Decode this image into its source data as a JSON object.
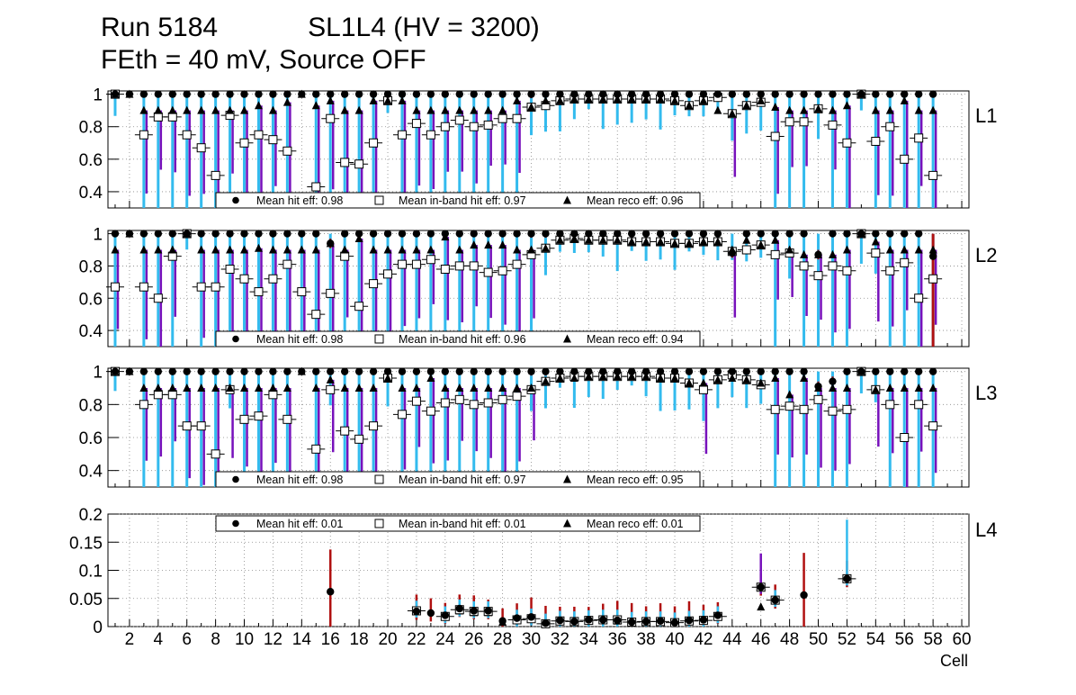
{
  "header": {
    "title_line1": "Run 5184            SL1L4 (HV = 3200)",
    "title_line2": "FEth = 40 mV, Source OFF"
  },
  "chart_data": [
    {
      "type": "scatter",
      "panel": "L1",
      "ylim": [
        0.3,
        1.02
      ],
      "yticks": [
        "0.4",
        "0.6",
        "0.8",
        "1"
      ],
      "legend": [
        "Mean hit  eff: 0.98",
        "Mean in-band hit eff: 0.97",
        "Mean reco eff: 0.96"
      ],
      "legend_position": "bottom",
      "inband": [
        [
          1,
          1.0
        ],
        [
          3,
          0.75
        ],
        [
          4,
          0.86
        ],
        [
          5,
          0.86
        ],
        [
          6,
          0.75
        ],
        [
          7,
          0.67
        ],
        [
          8,
          0.5
        ],
        [
          9,
          0.87
        ],
        [
          10,
          0.7
        ],
        [
          11,
          0.75
        ],
        [
          12,
          0.72
        ],
        [
          13,
          0.65
        ],
        [
          15,
          0.43
        ],
        [
          16,
          0.85
        ],
        [
          17,
          0.58
        ],
        [
          18,
          0.57
        ],
        [
          19,
          0.7
        ],
        [
          20,
          0.96
        ],
        [
          21,
          0.75
        ],
        [
          22,
          0.82
        ],
        [
          23,
          0.75
        ],
        [
          24,
          0.8
        ],
        [
          25,
          0.84
        ],
        [
          26,
          0.8
        ],
        [
          27,
          0.81
        ],
        [
          28,
          0.85
        ],
        [
          29,
          0.85
        ],
        [
          30,
          0.92
        ],
        [
          31,
          0.93
        ],
        [
          32,
          0.96
        ],
        [
          33,
          0.97
        ],
        [
          34,
          0.97
        ],
        [
          35,
          0.97
        ],
        [
          36,
          0.97
        ],
        [
          37,
          0.97
        ],
        [
          38,
          0.97
        ],
        [
          39,
          0.97
        ],
        [
          40,
          0.96
        ],
        [
          41,
          0.93
        ],
        [
          42,
          0.96
        ],
        [
          43,
          0.98
        ],
        [
          44,
          0.88
        ],
        [
          45,
          0.93
        ],
        [
          46,
          0.95
        ],
        [
          47,
          0.74
        ],
        [
          48,
          0.83
        ],
        [
          49,
          0.83
        ],
        [
          50,
          0.91
        ],
        [
          51,
          0.81
        ],
        [
          52,
          0.7
        ],
        [
          53,
          1.0
        ],
        [
          54,
          0.71
        ],
        [
          55,
          0.8
        ],
        [
          56,
          0.6
        ],
        [
          57,
          0.73
        ],
        [
          58,
          0.5
        ]
      ],
      "reco": [
        [
          11,
          0.93
        ],
        [
          13,
          0.95
        ],
        [
          15,
          0.93
        ],
        [
          16,
          0.96
        ],
        [
          19,
          0.96
        ],
        [
          21,
          0.96
        ],
        [
          29,
          0.96
        ],
        [
          31,
          0.96
        ],
        [
          43,
          0.9
        ],
        [
          44,
          0.88
        ],
        [
          46,
          0.96
        ],
        [
          47,
          0.92
        ],
        [
          52,
          0.93
        ],
        [
          53,
          1.0
        ],
        [
          54,
          0.9
        ],
        [
          56,
          0.96
        ]
      ],
      "hit_low": []
    },
    {
      "type": "scatter",
      "panel": "L2",
      "ylim": [
        0.3,
        1.02
      ],
      "yticks": [
        "0.4",
        "0.6",
        "0.8",
        "1"
      ],
      "legend": [
        "Mean hit  eff: 0.98",
        "Mean in-band hit eff: 0.96",
        "Mean reco eff: 0.94"
      ],
      "legend_position": "bottom",
      "inband": [
        [
          1,
          0.67
        ],
        [
          3,
          0.67
        ],
        [
          4,
          0.6
        ],
        [
          5,
          0.86
        ],
        [
          6,
          1.0
        ],
        [
          7,
          0.67
        ],
        [
          8,
          0.67
        ],
        [
          9,
          0.78
        ],
        [
          10,
          0.72
        ],
        [
          11,
          0.64
        ],
        [
          12,
          0.72
        ],
        [
          13,
          0.81
        ],
        [
          14,
          0.64
        ],
        [
          15,
          0.5
        ],
        [
          16,
          0.63
        ],
        [
          17,
          0.86
        ],
        [
          18,
          0.55
        ],
        [
          19,
          0.69
        ],
        [
          20,
          0.75
        ],
        [
          21,
          0.81
        ],
        [
          22,
          0.81
        ],
        [
          23,
          0.84
        ],
        [
          24,
          0.78
        ],
        [
          25,
          0.8
        ],
        [
          26,
          0.8
        ],
        [
          27,
          0.76
        ],
        [
          28,
          0.77
        ],
        [
          29,
          0.81
        ],
        [
          30,
          0.87
        ],
        [
          31,
          0.91
        ],
        [
          32,
          0.96
        ],
        [
          33,
          0.97
        ],
        [
          34,
          0.96
        ],
        [
          35,
          0.96
        ],
        [
          36,
          0.96
        ],
        [
          37,
          0.95
        ],
        [
          38,
          0.95
        ],
        [
          39,
          0.95
        ],
        [
          40,
          0.94
        ],
        [
          41,
          0.94
        ],
        [
          42,
          0.95
        ],
        [
          43,
          0.95
        ],
        [
          44,
          0.89
        ],
        [
          45,
          0.9
        ],
        [
          46,
          0.93
        ],
        [
          47,
          0.87
        ],
        [
          48,
          0.88
        ],
        [
          49,
          0.8
        ],
        [
          50,
          0.74
        ],
        [
          51,
          0.8
        ],
        [
          52,
          0.77
        ],
        [
          53,
          1.0
        ],
        [
          54,
          0.88
        ],
        [
          55,
          0.77
        ],
        [
          56,
          0.82
        ],
        [
          57,
          0.6
        ],
        [
          58,
          0.72
        ]
      ],
      "reco": [
        [
          11,
          0.91
        ],
        [
          16,
          0.94
        ],
        [
          18,
          0.97
        ],
        [
          24,
          0.98
        ],
        [
          26,
          0.93
        ],
        [
          27,
          0.93
        ],
        [
          28,
          0.93
        ],
        [
          44,
          0.9
        ],
        [
          45,
          0.96
        ],
        [
          47,
          0.96
        ],
        [
          49,
          0.87
        ],
        [
          50,
          0.87
        ],
        [
          51,
          0.87
        ],
        [
          53,
          1.0
        ],
        [
          54,
          0.95
        ]
      ],
      "hit_low": [
        [
          16,
          0.94
        ],
        [
          44,
          0.88
        ],
        [
          50,
          0.87
        ],
        [
          58,
          0.86
        ]
      ]
    },
    {
      "type": "scatter",
      "panel": "L3",
      "ylim": [
        0.3,
        1.02
      ],
      "yticks": [
        "0.4",
        "0.6",
        "0.8",
        "1"
      ],
      "legend": [
        "Mean hit  eff: 0.98",
        "Mean in-band hit eff: 0.97",
        "Mean reco eff: 0.95"
      ],
      "legend_position": "bottom",
      "inband": [
        [
          1,
          1.0
        ],
        [
          3,
          0.8
        ],
        [
          4,
          0.86
        ],
        [
          5,
          0.86
        ],
        [
          6,
          0.67
        ],
        [
          7,
          0.67
        ],
        [
          8,
          0.5
        ],
        [
          9,
          0.89
        ],
        [
          10,
          0.71
        ],
        [
          11,
          0.73
        ],
        [
          12,
          0.86
        ],
        [
          13,
          0.71
        ],
        [
          15,
          0.53
        ],
        [
          16,
          0.89
        ],
        [
          17,
          0.64
        ],
        [
          18,
          0.59
        ],
        [
          19,
          0.67
        ],
        [
          20,
          0.96
        ],
        [
          21,
          0.74
        ],
        [
          22,
          0.82
        ],
        [
          23,
          0.76
        ],
        [
          24,
          0.81
        ],
        [
          25,
          0.83
        ],
        [
          26,
          0.8
        ],
        [
          27,
          0.81
        ],
        [
          28,
          0.83
        ],
        [
          29,
          0.85
        ],
        [
          30,
          0.89
        ],
        [
          31,
          0.94
        ],
        [
          32,
          0.96
        ],
        [
          33,
          0.97
        ],
        [
          34,
          0.97
        ],
        [
          35,
          0.97
        ],
        [
          36,
          0.97
        ],
        [
          37,
          0.97
        ],
        [
          38,
          0.97
        ],
        [
          39,
          0.96
        ],
        [
          40,
          0.96
        ],
        [
          41,
          0.93
        ],
        [
          42,
          0.89
        ],
        [
          43,
          0.95
        ],
        [
          44,
          0.98
        ],
        [
          45,
          0.95
        ],
        [
          46,
          0.92
        ],
        [
          47,
          0.77
        ],
        [
          48,
          0.79
        ],
        [
          49,
          0.77
        ],
        [
          50,
          0.83
        ],
        [
          51,
          0.76
        ],
        [
          52,
          0.77
        ],
        [
          53,
          1.0
        ],
        [
          54,
          0.89
        ],
        [
          55,
          0.8
        ],
        [
          56,
          0.6
        ],
        [
          57,
          0.8
        ],
        [
          58,
          0.67
        ]
      ],
      "reco": [
        [
          10,
          0.9
        ],
        [
          16,
          0.95
        ],
        [
          23,
          0.96
        ],
        [
          33,
          0.96
        ],
        [
          42,
          0.93
        ],
        [
          44,
          0.96
        ],
        [
          46,
          0.93
        ],
        [
          47,
          0.96
        ],
        [
          48,
          0.86
        ],
        [
          49,
          0.96
        ],
        [
          53,
          1.0
        ],
        [
          54,
          0.89
        ],
        [
          56,
          0.9
        ],
        [
          57,
          0.9
        ]
      ],
      "hit_low": [
        [
          50,
          0.91
        ],
        [
          51,
          0.94
        ]
      ]
    },
    {
      "type": "scatter",
      "panel": "L4",
      "ylim": [
        0,
        0.2
      ],
      "yticks": [
        "0",
        "0.05",
        "0.1",
        "0.15",
        "0.2"
      ],
      "xlim": [
        0.5,
        60.5
      ],
      "xticks": [
        "2",
        "4",
        "6",
        "8",
        "10",
        "12",
        "14",
        "16",
        "18",
        "20",
        "22",
        "24",
        "26",
        "28",
        "30",
        "32",
        "34",
        "36",
        "38",
        "40",
        "42",
        "44",
        "46",
        "48",
        "50",
        "52",
        "54",
        "56",
        "58",
        "60"
      ],
      "xlabel": "Cell",
      "legend": [
        "Mean hit  eff: 0.01",
        "Mean in-band hit eff: 0.01",
        "Mean reco eff: 0.01"
      ],
      "legend_position": "top",
      "hit": [
        [
          16,
          0.062
        ],
        [
          22,
          0.027
        ],
        [
          23,
          0.024
        ],
        [
          24,
          0.02
        ],
        [
          25,
          0.032
        ],
        [
          26,
          0.028
        ],
        [
          27,
          0.028
        ],
        [
          28,
          0.01
        ],
        [
          29,
          0.015
        ],
        [
          30,
          0.017
        ],
        [
          31,
          0.006
        ],
        [
          32,
          0.011
        ],
        [
          33,
          0.009
        ],
        [
          34,
          0.012
        ],
        [
          35,
          0.012
        ],
        [
          36,
          0.011
        ],
        [
          37,
          0.008
        ],
        [
          38,
          0.009
        ],
        [
          39,
          0.01
        ],
        [
          40,
          0.007
        ],
        [
          41,
          0.011
        ],
        [
          42,
          0.012
        ],
        [
          43,
          0.02
        ],
        [
          46,
          0.07
        ],
        [
          47,
          0.047
        ],
        [
          49,
          0.056
        ],
        [
          52,
          0.085
        ]
      ],
      "inband": [
        [
          22,
          0.028
        ],
        [
          24,
          0.018
        ],
        [
          25,
          0.03
        ],
        [
          26,
          0.027
        ],
        [
          27,
          0.027
        ],
        [
          29,
          0.012
        ],
        [
          30,
          0.014
        ],
        [
          31,
          0.005
        ],
        [
          32,
          0.01
        ],
        [
          33,
          0.009
        ],
        [
          34,
          0.011
        ],
        [
          35,
          0.012
        ],
        [
          36,
          0.012
        ],
        [
          37,
          0.008
        ],
        [
          38,
          0.009
        ],
        [
          39,
          0.009
        ],
        [
          40,
          0.007
        ],
        [
          41,
          0.01
        ],
        [
          42,
          0.011
        ],
        [
          43,
          0.018
        ],
        [
          46,
          0.07
        ],
        [
          47,
          0.047
        ],
        [
          52,
          0.085
        ]
      ],
      "reco": [
        [
          22,
          0.027
        ],
        [
          24,
          0.017
        ],
        [
          25,
          0.028
        ],
        [
          26,
          0.025
        ],
        [
          27,
          0.025
        ],
        [
          28,
          0.008
        ],
        [
          29,
          0.013
        ],
        [
          30,
          0.015
        ],
        [
          31,
          0.005
        ],
        [
          32,
          0.01
        ],
        [
          33,
          0.009
        ],
        [
          34,
          0.011
        ],
        [
          35,
          0.011
        ],
        [
          36,
          0.01
        ],
        [
          37,
          0.007
        ],
        [
          38,
          0.008
        ],
        [
          39,
          0.009
        ],
        [
          40,
          0.006
        ],
        [
          41,
          0.01
        ],
        [
          42,
          0.011
        ],
        [
          43,
          0.017
        ],
        [
          46,
          0.035
        ],
        [
          47,
          0.047
        ],
        [
          52,
          0.085
        ]
      ]
    }
  ],
  "colors": {
    "hit_err": "#b01010",
    "inband_err": "#33bbee",
    "reco_err": "#7711bb",
    "marker": "#000000",
    "grid": "#888888"
  }
}
